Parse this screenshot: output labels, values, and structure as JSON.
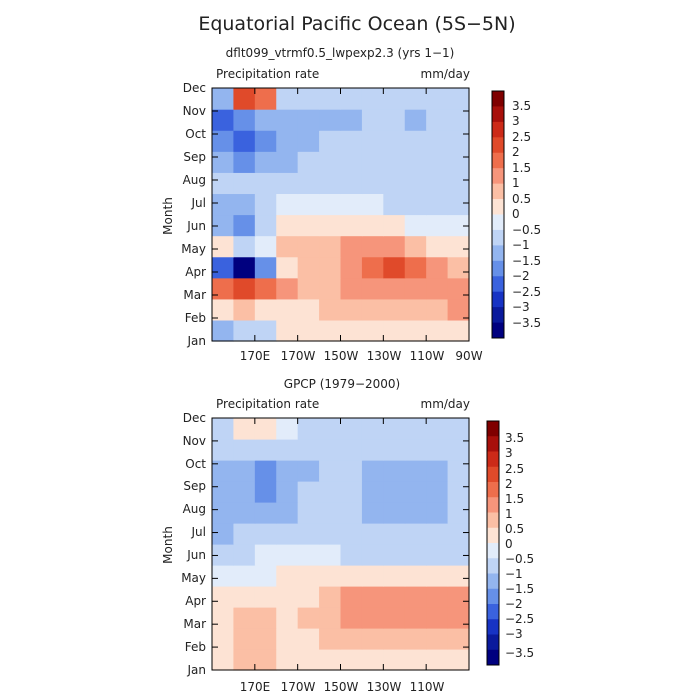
{
  "figure": {
    "title": "Equatorial Pacific Ocean (5S−5N)"
  },
  "chart_data": [
    {
      "type": "heatmap",
      "subtitle": "dflt099_vtrmf0.5_lwpexp2.3 (yrs 1−1)",
      "field_label": "Precipitation rate",
      "units": "mm/day",
      "ylabel": "Month",
      "x_ticks": [
        "170E",
        "170W",
        "150W",
        "130W",
        "110W",
        "90W"
      ],
      "x_tick_values": [
        170,
        190,
        210,
        230,
        250,
        270
      ],
      "xlim": [
        150,
        270
      ],
      "y_ticks": [
        "Jan",
        "Feb",
        "Mar",
        "Apr",
        "May",
        "Jun",
        "Jul",
        "Aug",
        "Sep",
        "Oct",
        "Nov",
        "Dec"
      ],
      "levels": [
        "3.5",
        "3",
        "2.5",
        "2",
        "1.5",
        "1",
        "0.5",
        "0",
        "−0.5",
        "−1",
        "−1.5",
        "−2",
        "−2.5",
        "−3",
        "−3.5"
      ],
      "palette": [
        "#7f0000",
        "#a8100b",
        "#cc2a18",
        "#e04a2a",
        "#ee6e4c",
        "#f6957b",
        "#fbbfa5",
        "#fde3d4",
        "#e2ecfa",
        "#bfd4f5",
        "#93b5ef",
        "#6690e8",
        "#3a62de",
        "#1733c4",
        "#0a1a9c",
        "#00007f"
      ],
      "grid": false,
      "legend": "right",
      "x_data": [
        155,
        165,
        175,
        185,
        195,
        205,
        215,
        225,
        235,
        245,
        255,
        265
      ],
      "z": [
        [
          -1.0,
          -0.5,
          -0.5,
          0.5,
          0.5,
          0.5,
          0.5,
          0.5,
          0.5,
          0.5,
          0.5,
          0.5
        ],
        [
          0.5,
          1.0,
          0.5,
          0.5,
          0.5,
          1.0,
          1.0,
          1.0,
          1.0,
          1.0,
          1.0,
          1.5
        ],
        [
          2.0,
          2.5,
          2.0,
          1.5,
          1.0,
          1.0,
          1.5,
          1.5,
          1.5,
          1.5,
          1.5,
          1.5
        ],
        [
          -2.0,
          -3.5,
          -1.5,
          0.5,
          1.0,
          1.0,
          1.5,
          2.0,
          2.5,
          2.0,
          1.5,
          1.0
        ],
        [
          0.5,
          -0.5,
          0.0,
          1.0,
          1.0,
          1.0,
          1.5,
          1.5,
          1.5,
          1.0,
          0.5,
          0.5
        ],
        [
          -1.0,
          -1.5,
          -0.5,
          0.5,
          0.5,
          0.5,
          0.5,
          0.5,
          0.5,
          0.0,
          0.0,
          0.0
        ],
        [
          -1.0,
          -1.0,
          -0.5,
          0.0,
          0.0,
          0.0,
          0.0,
          0.0,
          -0.5,
          -0.5,
          -0.5,
          -0.5
        ],
        [
          -0.5,
          -0.5,
          -0.5,
          -0.5,
          -0.5,
          -0.5,
          -0.5,
          -0.5,
          -0.5,
          -0.5,
          -0.5,
          -0.5
        ],
        [
          -1.0,
          -1.5,
          -1.0,
          -1.0,
          -0.5,
          -0.5,
          -0.5,
          -0.5,
          -0.5,
          -0.5,
          -0.5,
          -0.5
        ],
        [
          -1.5,
          -2.0,
          -1.5,
          -1.0,
          -1.0,
          -0.5,
          -0.5,
          -0.5,
          -0.5,
          -0.5,
          -0.5,
          -0.5
        ],
        [
          -2.0,
          -1.5,
          -1.0,
          -1.0,
          -1.0,
          -1.0,
          -1.0,
          -0.5,
          -0.5,
          -1.0,
          -0.5,
          -0.5
        ],
        [
          -1.0,
          2.5,
          2.0,
          -0.5,
          -0.5,
          -0.5,
          -0.5,
          -0.5,
          -0.5,
          -0.5,
          -0.5,
          -0.5
        ]
      ]
    },
    {
      "type": "heatmap",
      "subtitle": "GPCP (1979−2000)",
      "field_label": "Precipitation rate",
      "units": "mm/day",
      "ylabel": "Month",
      "x_ticks": [
        "170E",
        "170W",
        "150W",
        "130W",
        "110W"
      ],
      "x_tick_values": [
        170,
        190,
        210,
        230,
        250
      ],
      "xlim": [
        150,
        270
      ],
      "y_ticks": [
        "Jan",
        "Feb",
        "Mar",
        "Apr",
        "May",
        "Jun",
        "Jul",
        "Aug",
        "Sep",
        "Oct",
        "Nov",
        "Dec"
      ],
      "levels": [
        "3.5",
        "3",
        "2.5",
        "2",
        "1.5",
        "1",
        "0.5",
        "0",
        "−0.5",
        "−1",
        "−1.5",
        "−2",
        "−2.5",
        "−3",
        "−3.5"
      ],
      "palette": [
        "#7f0000",
        "#a8100b",
        "#cc2a18",
        "#e04a2a",
        "#ee6e4c",
        "#f6957b",
        "#fbbfa5",
        "#fde3d4",
        "#e2ecfa",
        "#bfd4f5",
        "#93b5ef",
        "#6690e8",
        "#3a62de",
        "#1733c4",
        "#0a1a9c",
        "#00007f"
      ],
      "grid": false,
      "legend": "right",
      "x_data": [
        155,
        165,
        175,
        185,
        195,
        205,
        215,
        225,
        235,
        245,
        255,
        265
      ],
      "z": [
        [
          0.5,
          1.0,
          1.0,
          0.5,
          0.5,
          0.5,
          0.5,
          0.5,
          0.5,
          0.5,
          0.5,
          0.5
        ],
        [
          0.5,
          1.0,
          1.0,
          0.5,
          0.5,
          1.0,
          1.0,
          1.0,
          1.0,
          1.0,
          1.0,
          1.0
        ],
        [
          0.5,
          1.0,
          1.0,
          0.5,
          1.0,
          1.0,
          1.5,
          1.5,
          1.5,
          1.5,
          1.5,
          1.5
        ],
        [
          0.5,
          0.5,
          0.5,
          0.5,
          0.5,
          1.0,
          1.5,
          1.5,
          1.5,
          1.5,
          1.5,
          1.5
        ],
        [
          0.0,
          0.0,
          0.0,
          0.5,
          0.5,
          0.5,
          0.5,
          0.5,
          0.5,
          0.5,
          0.5,
          0.5
        ],
        [
          -0.5,
          -0.5,
          0.0,
          0.0,
          0.0,
          0.0,
          -0.5,
          -0.5,
          -0.5,
          -0.5,
          -0.5,
          -0.5
        ],
        [
          -1.0,
          -0.5,
          -0.5,
          -0.5,
          -0.5,
          -0.5,
          -0.5,
          -0.5,
          -0.5,
          -0.5,
          -0.5,
          -0.5
        ],
        [
          -1.0,
          -1.0,
          -1.0,
          -1.0,
          -0.5,
          -0.5,
          -0.5,
          -1.0,
          -1.0,
          -1.0,
          -1.0,
          -0.5
        ],
        [
          -1.0,
          -1.0,
          -1.5,
          -1.0,
          -0.5,
          -0.5,
          -0.5,
          -1.0,
          -1.0,
          -1.0,
          -1.0,
          -0.5
        ],
        [
          -1.0,
          -1.0,
          -1.5,
          -1.0,
          -1.0,
          -0.5,
          -0.5,
          -1.0,
          -1.0,
          -1.0,
          -1.0,
          -0.5
        ],
        [
          -0.5,
          -0.5,
          -0.5,
          -0.5,
          -0.5,
          -0.5,
          -0.5,
          -0.5,
          -0.5,
          -0.5,
          -0.5,
          -0.5
        ],
        [
          -0.5,
          0.5,
          0.5,
          0.0,
          -0.5,
          -0.5,
          -0.5,
          -0.5,
          -0.5,
          -0.5,
          -0.5,
          -0.5
        ]
      ]
    }
  ]
}
